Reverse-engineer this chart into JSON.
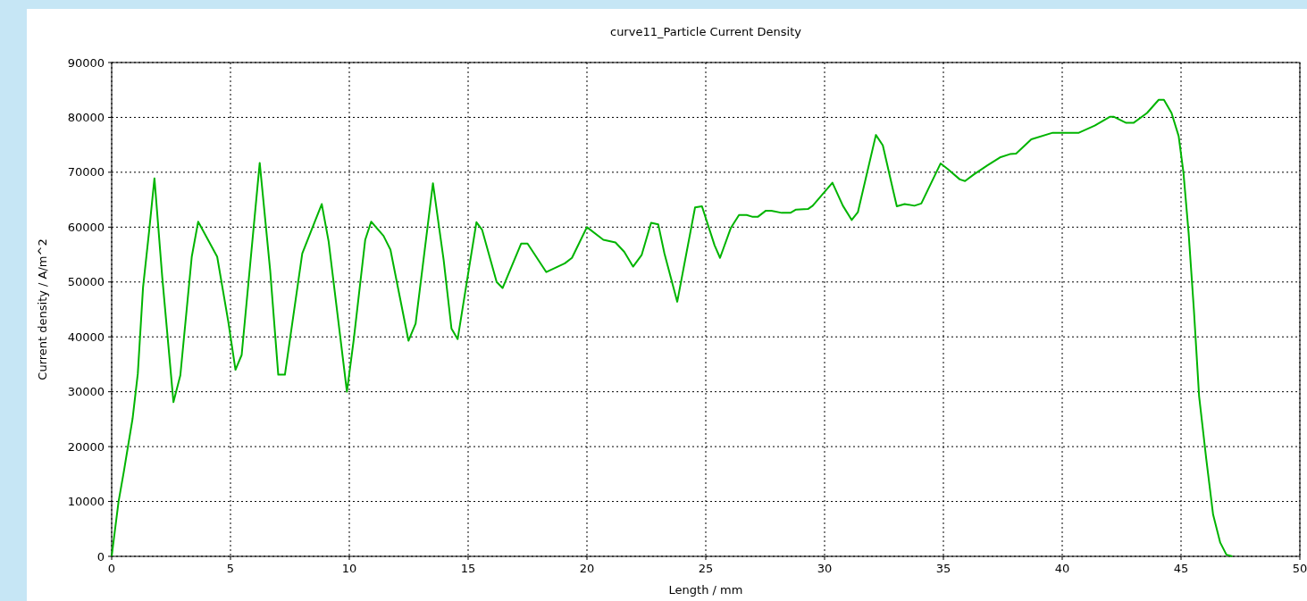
{
  "chart_data": {
    "type": "line",
    "title": "curve11_Particle Current Density",
    "xlabel": "Length / mm",
    "ylabel": "Current density / A/m^2",
    "xlim": [
      0,
      50
    ],
    "ylim": [
      0,
      90000
    ],
    "xticks": [
      0,
      5,
      10,
      15,
      20,
      25,
      30,
      35,
      40,
      45,
      50
    ],
    "yticks": [
      0,
      10000,
      20000,
      30000,
      40000,
      50000,
      60000,
      70000,
      80000,
      90000
    ],
    "grid": true,
    "line_style": "solid",
    "marker": "none",
    "series": [
      {
        "color": "#00b400",
        "x": [
          0,
          0.29,
          0.51,
          0.88,
          1.1,
          1.32,
          1.57,
          1.8,
          2.13,
          2.6,
          2.89,
          3.37,
          3.64,
          4.44,
          4.91,
          5.21,
          5.47,
          6.23,
          6.67,
          7.01,
          7.29,
          8.02,
          8.84,
          9.13,
          9.9,
          10.19,
          10.67,
          10.92,
          11.44,
          11.73,
          12.49,
          12.79,
          13.52,
          13.97,
          14.3,
          14.56,
          15.0,
          15.35,
          15.59,
          16.2,
          16.45,
          17.23,
          17.5,
          18.29,
          19.07,
          19.37,
          20.0,
          20.69,
          21.2,
          21.57,
          21.94,
          22.3,
          22.7,
          23.0,
          23.26,
          23.8,
          24.55,
          24.84,
          25.37,
          25.6,
          26.06,
          26.4,
          26.72,
          26.95,
          27.2,
          27.53,
          27.76,
          28.2,
          28.56,
          28.8,
          29.3,
          29.5,
          30.33,
          30.77,
          31.14,
          31.4,
          32.16,
          32.45,
          32.9,
          33.04,
          33.37,
          33.78,
          34.07,
          34.88,
          35.18,
          35.69,
          35.91,
          36.28,
          36.87,
          37.38,
          37.8,
          38.06,
          38.7,
          39.6,
          40.7,
          41.37,
          42.0,
          42.18,
          42.69,
          43.0,
          43.57,
          44.06,
          44.28,
          44.6,
          44.9,
          45.1,
          45.32,
          45.54,
          45.76,
          46.06,
          46.35,
          46.65,
          46.91,
          47.16
        ],
        "values": [
          0,
          10000,
          15400,
          25100,
          33300,
          49000,
          59000,
          68900,
          50800,
          28100,
          33000,
          54600,
          61000,
          54600,
          42700,
          34000,
          36700,
          71700,
          52100,
          33100,
          33100,
          55200,
          64200,
          57400,
          30000,
          39600,
          57700,
          61000,
          58400,
          55900,
          39300,
          42400,
          68000,
          54000,
          41500,
          39600,
          51500,
          60900,
          59500,
          50000,
          48900,
          57000,
          57000,
          51800,
          53400,
          54400,
          60000,
          57700,
          57200,
          55500,
          52800,
          54900,
          60800,
          60500,
          55200,
          46400,
          63600,
          63800,
          56700,
          54400,
          59900,
          62200,
          62200,
          61900,
          61900,
          63000,
          63000,
          62600,
          62600,
          63200,
          63300,
          63900,
          68100,
          63900,
          61300,
          62700,
          76800,
          74900,
          66400,
          63800,
          64200,
          63900,
          64300,
          71600,
          70600,
          68700,
          68400,
          69600,
          71300,
          72700,
          73300,
          73400,
          76000,
          77200,
          77200,
          78500,
          80100,
          80100,
          79000,
          79000,
          80800,
          83200,
          83200,
          80800,
          76600,
          70000,
          58900,
          45000,
          29200,
          17800,
          7600,
          2500,
          300,
          0
        ]
      }
    ]
  }
}
